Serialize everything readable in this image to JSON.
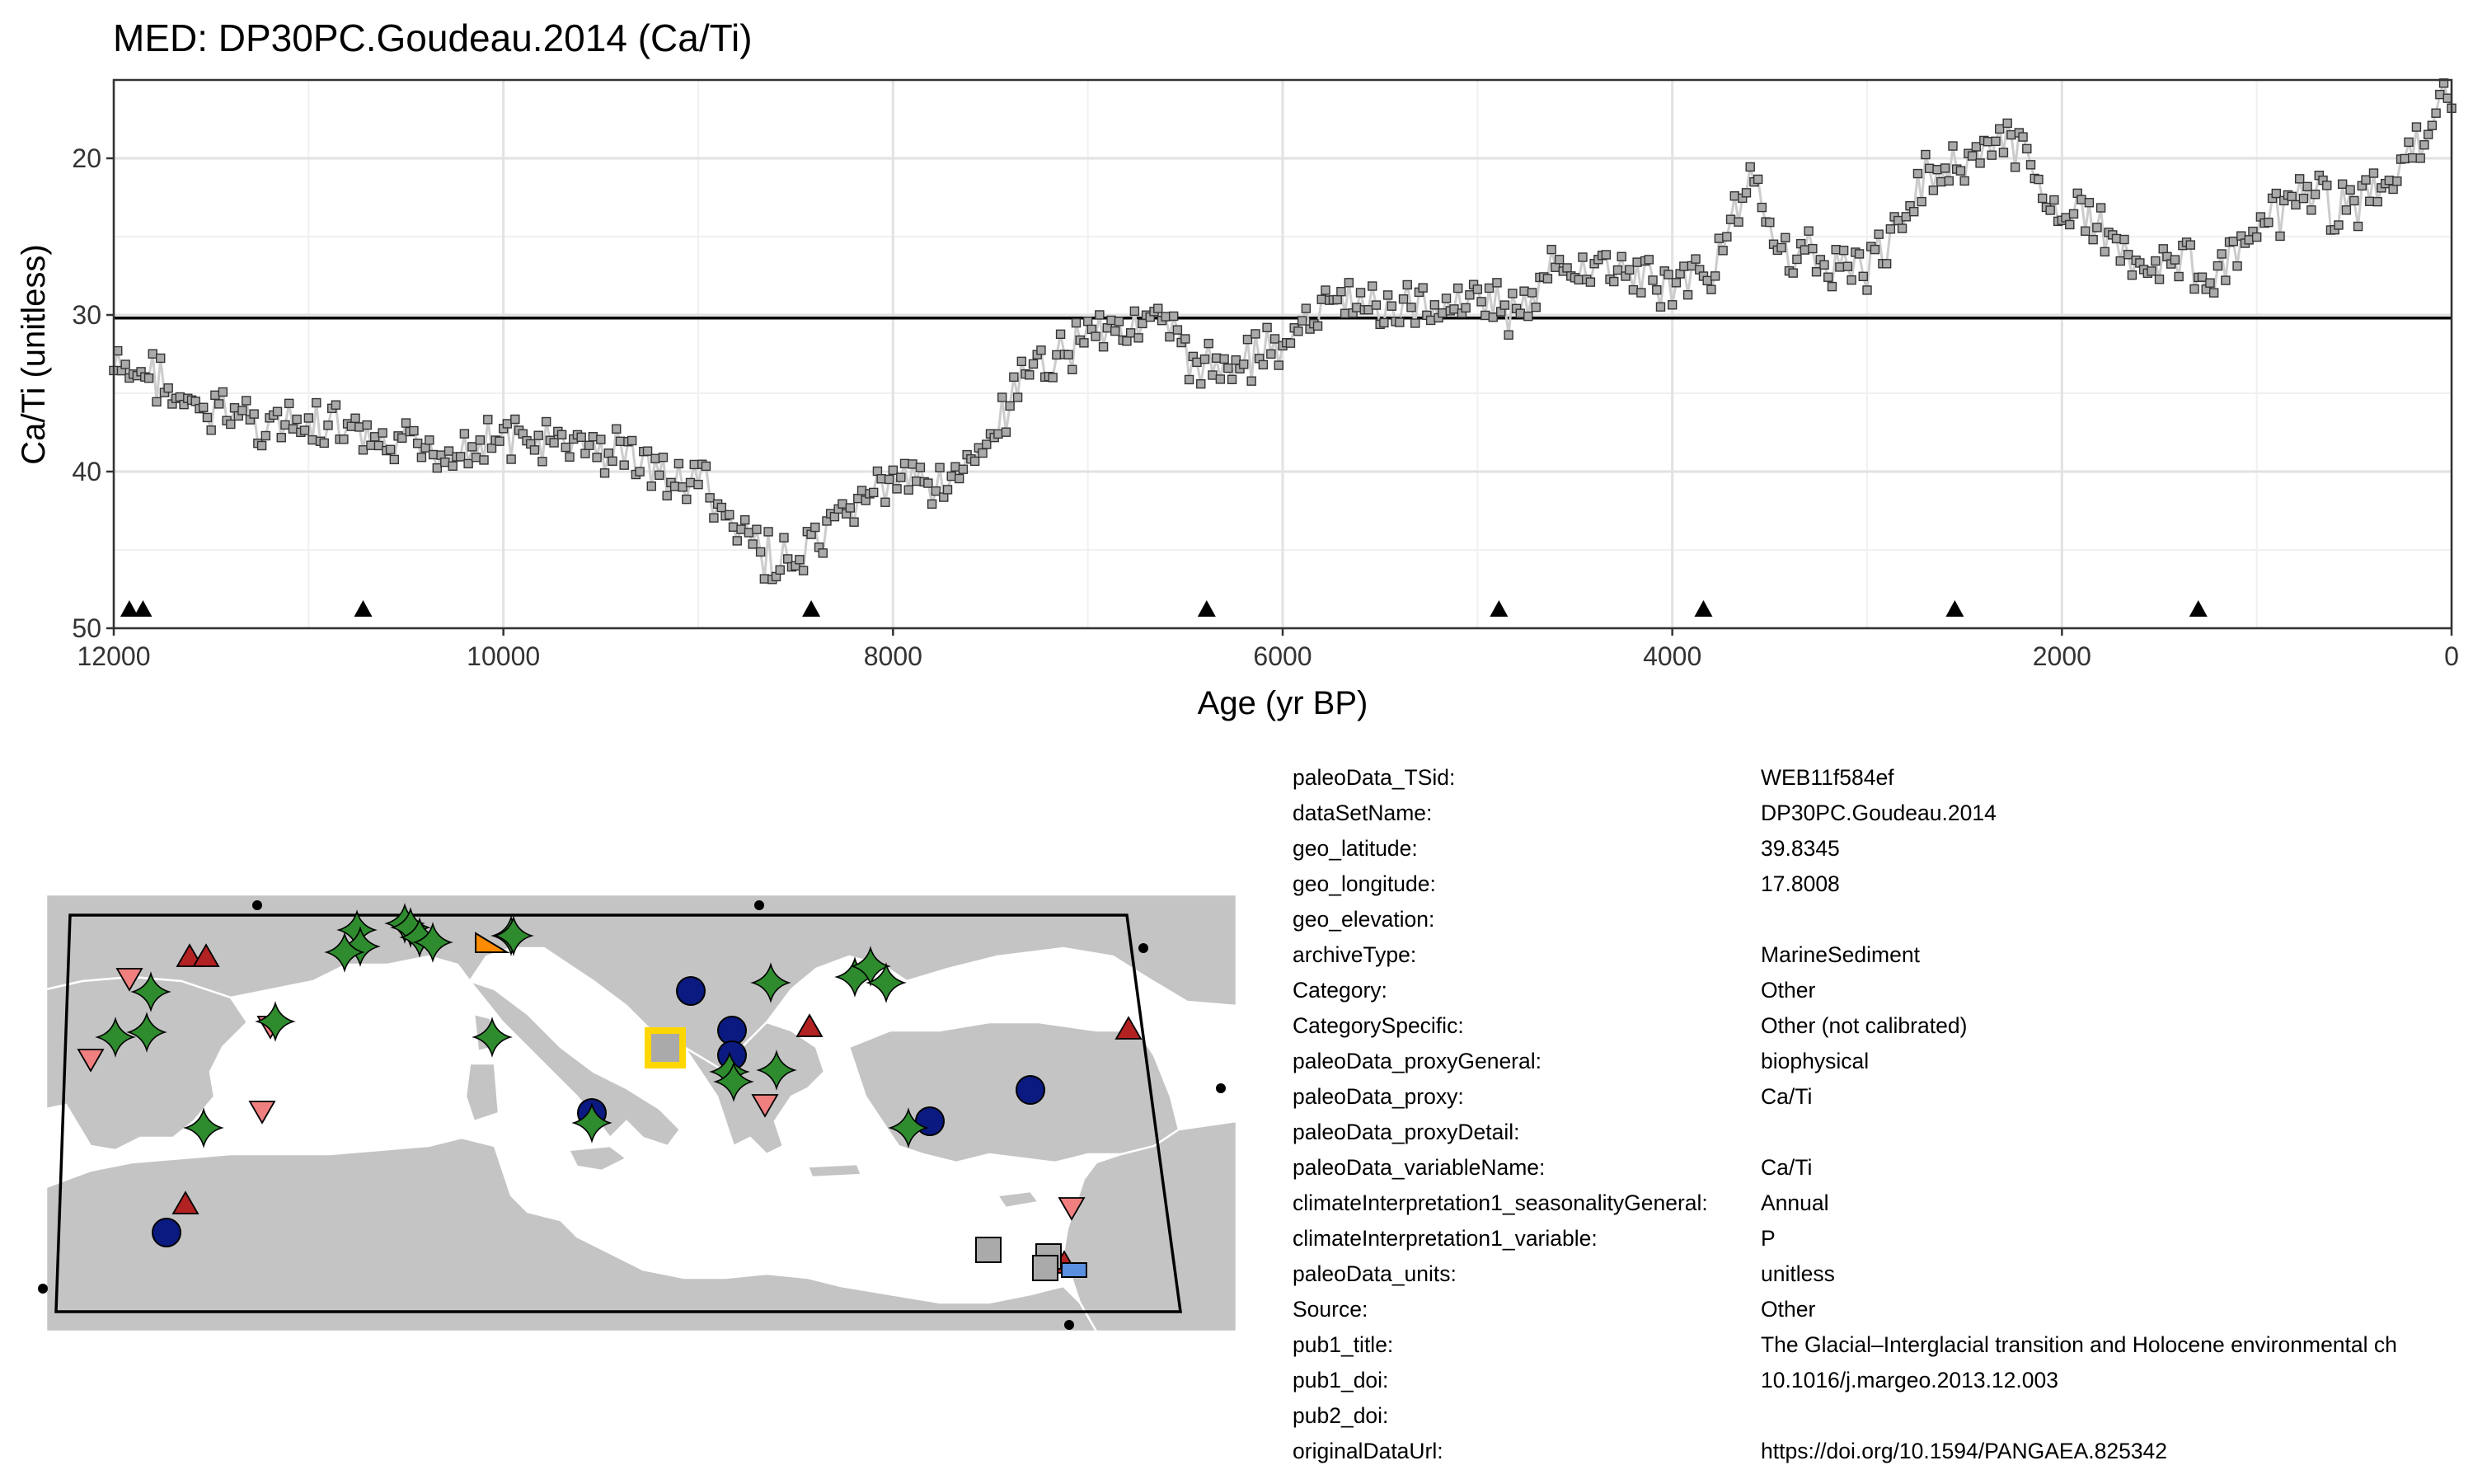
{
  "chart_data": {
    "type": "line",
    "title": "MED: DP30PC.Goudeau.2014 (Ca/Ti)",
    "xlabel": "Age (yr BP)",
    "ylabel": "Ca/Ti (unitless)",
    "xlim": [
      12000,
      0
    ],
    "ylim": [
      50,
      15
    ],
    "x_reversed": true,
    "y_reversed": true,
    "xticks": [
      12000,
      10000,
      8000,
      6000,
      4000,
      2000,
      0
    ],
    "xtick_labels": [
      "12000",
      "10000",
      "8000",
      "6000",
      "4000",
      "2000",
      "0"
    ],
    "yticks": [
      20,
      30,
      40,
      50
    ],
    "ytick_labels": [
      "20",
      "30",
      "40",
      "50"
    ],
    "grid": true,
    "reference_line_y": 30.2,
    "marker": "square",
    "marker_color": "#aaaaaa",
    "line_color": "#cccccc",
    "series_anchor_points": [
      [
        12000,
        33.5
      ],
      [
        11900,
        34
      ],
      [
        11750,
        33.8
      ],
      [
        11700,
        35.5
      ],
      [
        11600,
        36
      ],
      [
        11500,
        36.5
      ],
      [
        11400,
        36
      ],
      [
        11300,
        36.5
      ],
      [
        11200,
        37
      ],
      [
        11000,
        37.2
      ],
      [
        10800,
        37.5
      ],
      [
        10700,
        38.5
      ],
      [
        10500,
        38.5
      ],
      [
        10300,
        38.5
      ],
      [
        10100,
        38
      ],
      [
        9900,
        38
      ],
      [
        9700,
        38.5
      ],
      [
        9500,
        38.5
      ],
      [
        9300,
        39
      ],
      [
        9200,
        40
      ],
      [
        9100,
        41
      ],
      [
        9000,
        40
      ],
      [
        8900,
        42.5
      ],
      [
        8800,
        44
      ],
      [
        8700,
        45
      ],
      [
        8600,
        45.5
      ],
      [
        8500,
        46
      ],
      [
        8400,
        45
      ],
      [
        8300,
        44
      ],
      [
        8200,
        42
      ],
      [
        8100,
        41
      ],
      [
        8000,
        41
      ],
      [
        7800,
        40.5
      ],
      [
        7600,
        40
      ],
      [
        7500,
        38
      ],
      [
        7400,
        36
      ],
      [
        7300,
        34
      ],
      [
        7200,
        33
      ],
      [
        7100,
        32
      ],
      [
        7000,
        31
      ],
      [
        6900,
        30.5
      ],
      [
        6800,
        30.5
      ],
      [
        6600,
        31
      ],
      [
        6500,
        32.5
      ],
      [
        6400,
        33.5
      ],
      [
        6200,
        32.5
      ],
      [
        6000,
        32
      ],
      [
        5900,
        31
      ],
      [
        5800,
        30
      ],
      [
        5700,
        29
      ],
      [
        5500,
        29.5
      ],
      [
        5300,
        29.5
      ],
      [
        5100,
        29
      ],
      [
        5000,
        28.5
      ],
      [
        4900,
        29.5
      ],
      [
        4800,
        30
      ],
      [
        4700,
        29
      ],
      [
        4600,
        27
      ],
      [
        4400,
        27
      ],
      [
        4200,
        27.5
      ],
      [
        4000,
        28
      ],
      [
        3900,
        27.5
      ],
      [
        3800,
        27
      ],
      [
        3700,
        24
      ],
      [
        3600,
        22
      ],
      [
        3500,
        24
      ],
      [
        3400,
        26
      ],
      [
        3200,
        26.5
      ],
      [
        3000,
        27
      ],
      [
        2900,
        26
      ],
      [
        2800,
        23
      ],
      [
        2700,
        21
      ],
      [
        2600,
        20.5
      ],
      [
        2500,
        20
      ],
      [
        2400,
        19.5
      ],
      [
        2300,
        19
      ],
      [
        2200,
        20
      ],
      [
        2100,
        22
      ],
      [
        2000,
        23
      ],
      [
        1900,
        24
      ],
      [
        1800,
        24.5
      ],
      [
        1700,
        25.5
      ],
      [
        1600,
        26.5
      ],
      [
        1400,
        26.5
      ],
      [
        1300,
        27
      ],
      [
        1200,
        27.5
      ],
      [
        1100,
        26
      ],
      [
        1000,
        25
      ],
      [
        900,
        24
      ],
      [
        800,
        22.5
      ],
      [
        700,
        22.5
      ],
      [
        600,
        23
      ],
      [
        400,
        22.5
      ],
      [
        300,
        21.5
      ],
      [
        200,
        19.5
      ],
      [
        100,
        18
      ],
      [
        0,
        15.5
      ]
    ],
    "age_control_points": [
      11920,
      11850,
      10720,
      8420,
      6390,
      4890,
      3840,
      2550,
      1300
    ]
  },
  "map": {
    "legend_markers": [
      {
        "shape": "circle",
        "color": "#0a1a80"
      },
      {
        "shape": "triangle-up",
        "color": "#b22222"
      },
      {
        "shape": "triangle-down",
        "color": "#f08080"
      },
      {
        "shape": "star",
        "color": "#2e8b2e"
      },
      {
        "shape": "square",
        "color": "#aaaaaa"
      },
      {
        "shape": "square",
        "color": "#5b8fe0"
      },
      {
        "shape": "triangle",
        "color": "#ff8c00"
      }
    ],
    "highlight_color": "#ffd700"
  },
  "metadata": [
    {
      "key": "paleoData_TSid:",
      "value": "WEB11f584ef"
    },
    {
      "key": "dataSetName:",
      "value": "DP30PC.Goudeau.2014"
    },
    {
      "key": "geo_latitude:",
      "value": "39.8345"
    },
    {
      "key": "geo_longitude:",
      "value": "17.8008"
    },
    {
      "key": "geo_elevation:",
      "value": ""
    },
    {
      "key": "archiveType:",
      "value": "MarineSediment"
    },
    {
      "key": "Category:",
      "value": "Other"
    },
    {
      "key": "CategorySpecific:",
      "value": "Other (not calibrated)"
    },
    {
      "key": "paleoData_proxyGeneral:",
      "value": "biophysical"
    },
    {
      "key": "paleoData_proxy:",
      "value": "Ca/Ti"
    },
    {
      "key": "paleoData_proxyDetail:",
      "value": ""
    },
    {
      "key": "paleoData_variableName:",
      "value": "Ca/Ti"
    },
    {
      "key": "climateInterpretation1_seasonalityGeneral:",
      "value": "Annual"
    },
    {
      "key": "climateInterpretation1_variable:",
      "value": "P"
    },
    {
      "key": "paleoData_units:",
      "value": "unitless"
    },
    {
      "key": "Source:",
      "value": "Other"
    },
    {
      "key": "pub1_title:",
      "value": "The Glacial–Interglacial transition and Holocene environmental ch"
    },
    {
      "key": "pub1_doi:",
      "value": "10.1016/j.margeo.2013.12.003"
    },
    {
      "key": "pub2_doi:",
      "value": ""
    },
    {
      "key": "originalDataUrl:",
      "value": "https://doi.org/10.1594/PANGAEA.825342"
    }
  ]
}
